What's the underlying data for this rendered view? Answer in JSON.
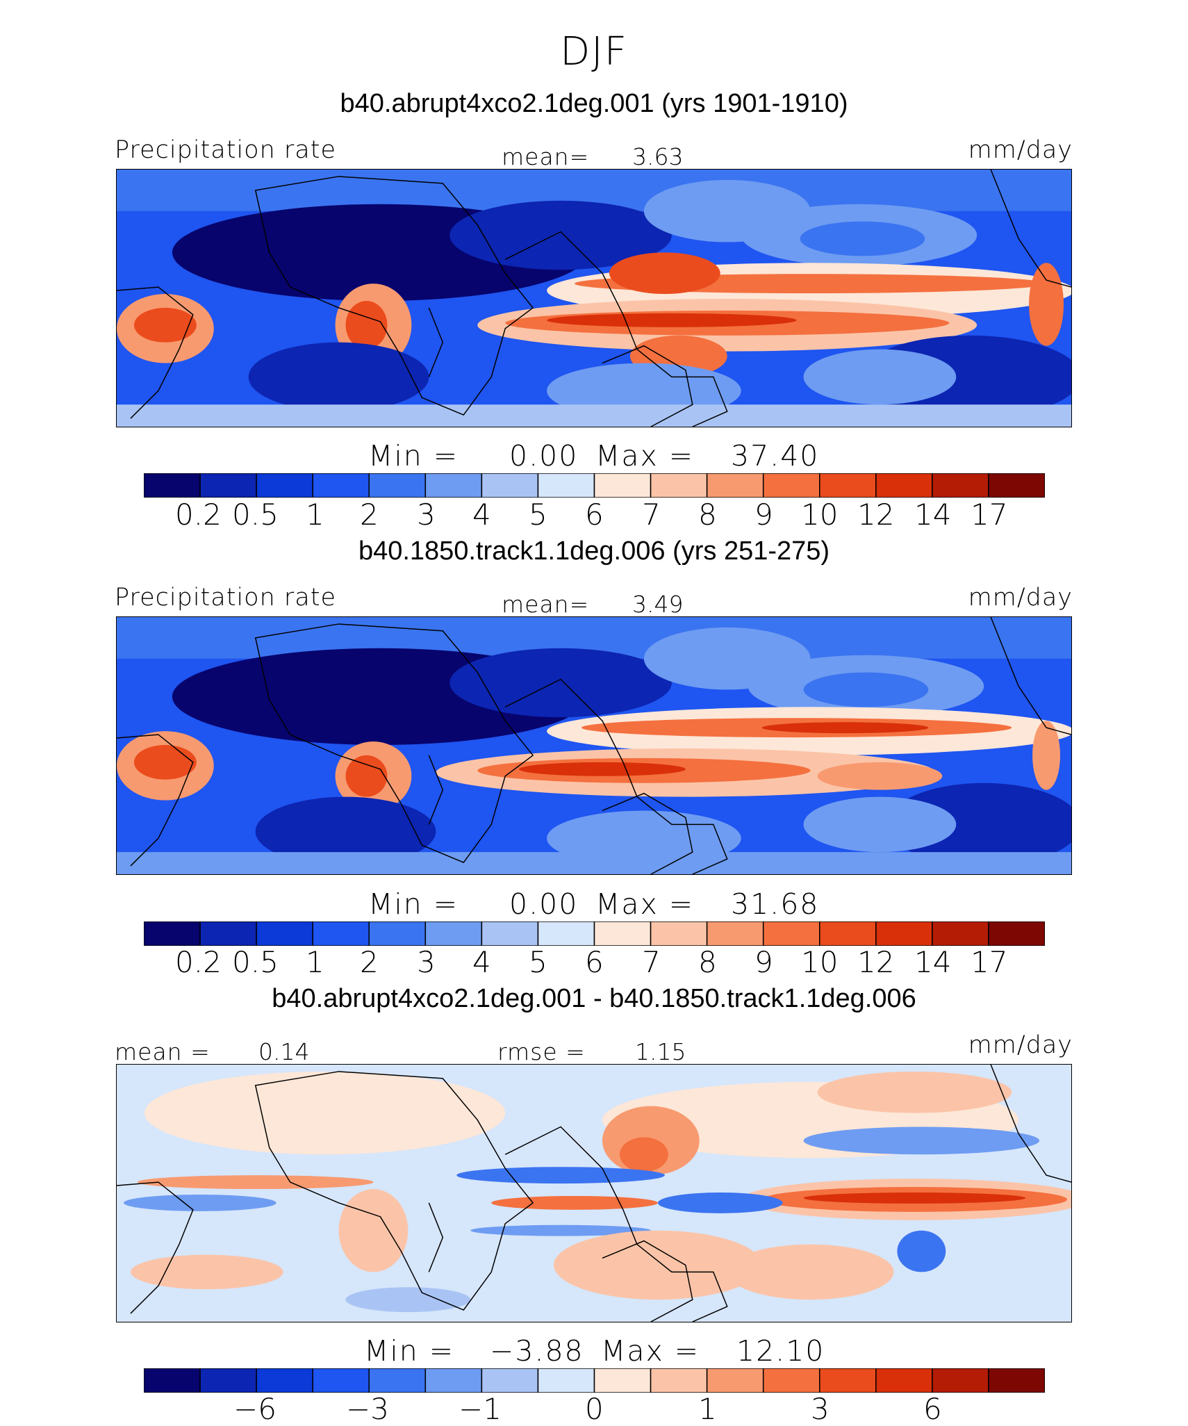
{
  "season_title": "DJF",
  "panels": [
    {
      "case_title": "b40.abrupt4xco2.1deg.001 (yrs 1901-1910)",
      "left_label": "Precipitation rate",
      "center_label": "mean=",
      "center_value": "3.63",
      "units": "mm/day",
      "min_label": "Min =",
      "min_value": "0.00",
      "max_label": "Max =",
      "max_value": "37.40",
      "colorbar_ticks": [
        "0.2",
        "0.5",
        "1",
        "2",
        "3",
        "4",
        "5",
        "6",
        "7",
        "8",
        "9",
        "10",
        "12",
        "14",
        "17"
      ]
    },
    {
      "case_title": "b40.1850.track1.1deg.006 (yrs 251-275)",
      "left_label": "Precipitation rate",
      "center_label": "mean=",
      "center_value": "3.49",
      "units": "mm/day",
      "min_label": "Min =",
      "min_value": "0.00",
      "max_label": "Max =",
      "max_value": "31.68",
      "colorbar_ticks": [
        "0.2",
        "0.5",
        "1",
        "2",
        "3",
        "4",
        "5",
        "6",
        "7",
        "8",
        "9",
        "10",
        "12",
        "14",
        "17"
      ]
    },
    {
      "case_title": "b40.abrupt4xco2.1deg.001 - b40.1850.track1.1deg.006",
      "left_label": "mean =",
      "left_value": "0.14",
      "center_label": "rmse =",
      "center_value": "1.15",
      "units": "mm/day",
      "min_label": "Min =",
      "min_value": "−3.88",
      "max_label": "Max =",
      "max_value": "12.10",
      "colorbar_ticks": [
        "−6",
        "−3",
        "−1",
        "0",
        "1",
        "3",
        "6"
      ]
    }
  ],
  "colormap": [
    "#07046e",
    "#0c25b2",
    "#0b3ad9",
    "#1f55f0",
    "#3b74f0",
    "#6e9cf2",
    "#a9c4f4",
    "#d6e6fb",
    "#fde7d8",
    "#fbc4a8",
    "#f89a70",
    "#f4703f",
    "#eb4c1d",
    "#d9300a",
    "#b51c05",
    "#7c0703"
  ]
}
